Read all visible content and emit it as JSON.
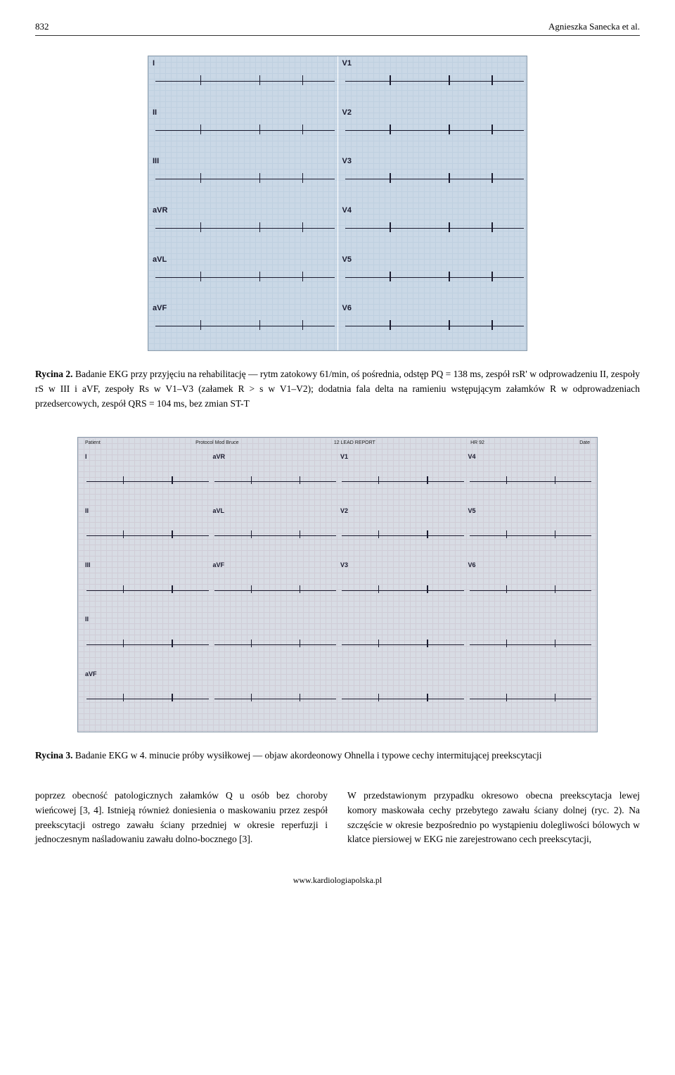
{
  "header": {
    "page_number": "832",
    "authors": "Agnieszka Sanecka et al."
  },
  "figure1": {
    "leads_left": [
      "I",
      "II",
      "III",
      "aVR",
      "aVL",
      "aVF"
    ],
    "leads_right": [
      "V1",
      "V2",
      "V3",
      "V4",
      "V5",
      "V6"
    ],
    "caption_label": "Rycina 2.",
    "caption_text": "Badanie EKG przy przyjęciu na rehabilitację — rytm zatokowy 61/min, oś pośrednia, odstęp PQ = 138 ms, zespół rsR' w odprowadzeniu II, zespoły rS w III i aVF, zespoły Rs w V1–V3 (załamek R > s w V1–V2); dodatnia fala delta na ramieniu wstępującym załamków R w odprowadzeniach przedsercowych, zespół QRS = 104 ms, bez zmian ST-T",
    "bg_color": "#cad8e6",
    "grid_color": "#b3c7da",
    "trace_color": "#1a1a2e"
  },
  "figure2": {
    "header_bits": [
      "Patient",
      "Protocol  Mod Bruce",
      "12 LEAD REPORT",
      "HR  92",
      "Date"
    ],
    "leads": [
      [
        "I",
        "aVR",
        "V1",
        "V4"
      ],
      [
        "II",
        "aVL",
        "V2",
        "V5"
      ],
      [
        "III",
        "aVF",
        "V3",
        "V6"
      ],
      [
        "II",
        "",
        "",
        ""
      ],
      [
        "aVF",
        "",
        "",
        ""
      ]
    ],
    "caption_label": "Rycina 3.",
    "caption_text": "Badanie EKG w 4. minucie próby wysiłkowej — objaw akordeonowy Ohnella i typowe cechy intermitującej preekscytacji",
    "bg_color": "#d8dce4",
    "grid_color": "#c6b8c6",
    "trace_color": "#1a1a2e"
  },
  "body": {
    "left": "poprzez obecność patologicznych załamków Q u osób bez choroby wieńcowej [3, 4]. Istnieją również doniesienia o maskowaniu przez zespół preekscytacji ostrego zawału ściany przedniej w okresie reperfuzji i jednoczesnym naśladowaniu zawału dolno-bocznego [3].",
    "right": "W przedstawionym przypadku okresowo obecna preekscytacja lewej komory maskowała cechy przebytego zawału ściany dolnej (ryc. 2). Na szczęście w okresie bezpośrednio po wystąpieniu dolegliwości bólowych w klatce piersiowej w EKG nie zarejestrowano cech preekscytacji,"
  },
  "footer": {
    "url": "www.kardiologiapolska.pl"
  }
}
